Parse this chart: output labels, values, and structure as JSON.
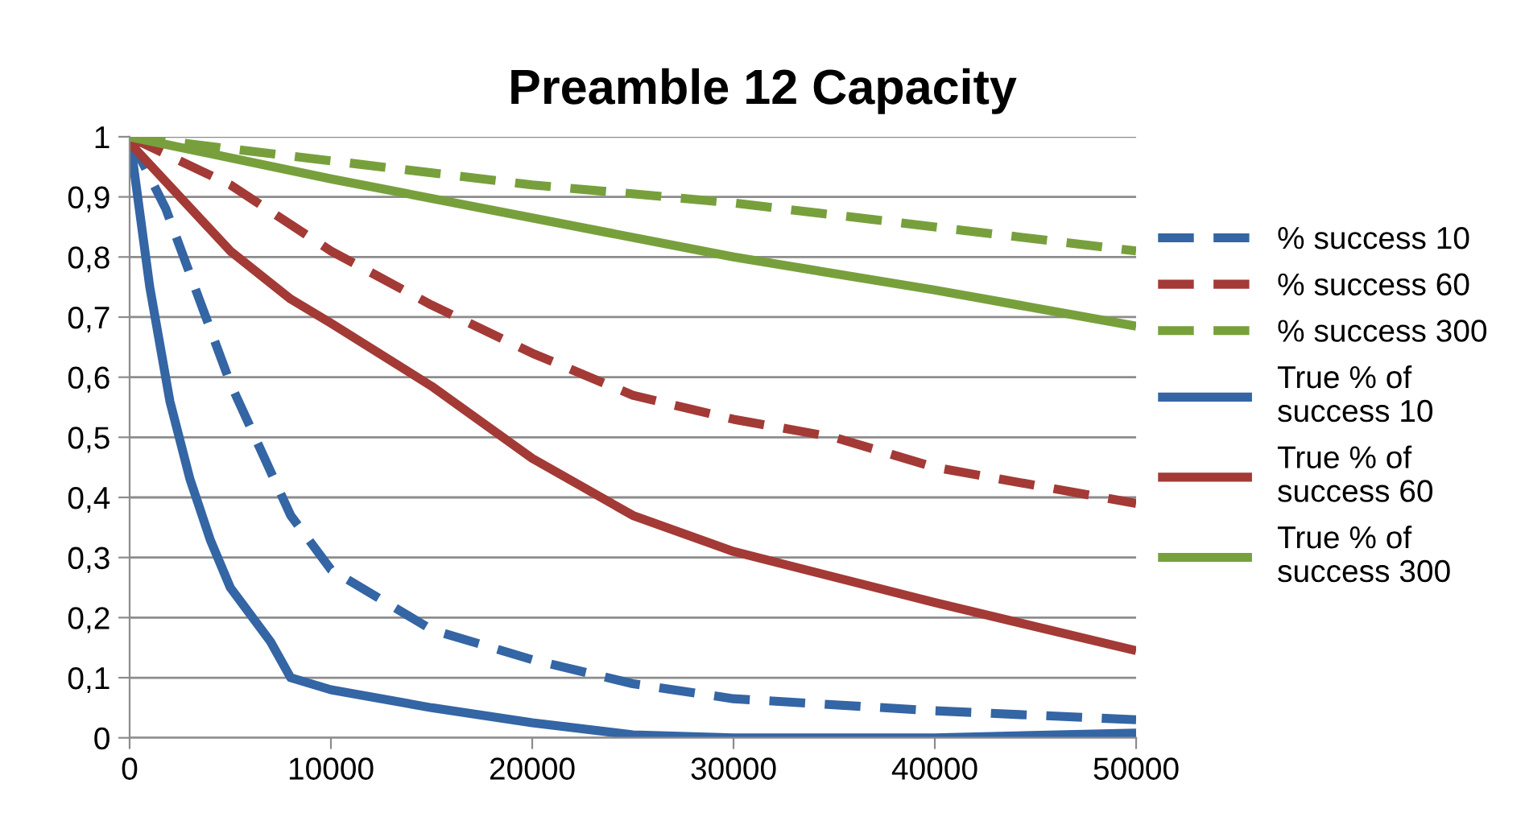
{
  "chart_data": {
    "type": "line",
    "title": "Preamble 12 Capacity",
    "series": [
      {
        "name": "% success 10",
        "color": "#3465a4",
        "line_style": "dashed",
        "x": [
          0,
          1800,
          5000,
          8000,
          10000,
          15000,
          20000,
          25000,
          30000,
          40000,
          50000
        ],
        "values": [
          1,
          0.88,
          0.59,
          0.37,
          0.28,
          0.18,
          0.13,
          0.09,
          0.065,
          0.045,
          0.03
        ]
      },
      {
        "name": "% success 60",
        "color": "#a33a36",
        "line_style": "dashed",
        "x": [
          0,
          5000,
          10000,
          15000,
          20000,
          25000,
          30000,
          35000,
          40000,
          50000
        ],
        "values": [
          1,
          0.92,
          0.81,
          0.72,
          0.64,
          0.57,
          0.53,
          0.5,
          0.45,
          0.39
        ]
      },
      {
        "name": "% success 300",
        "color": "#77a03c",
        "line_style": "dashed",
        "x": [
          0,
          10000,
          20000,
          30000,
          40000,
          50000
        ],
        "values": [
          1,
          0.96,
          0.92,
          0.89,
          0.85,
          0.81
        ]
      },
      {
        "name": "True % of\nsuccess 10",
        "color": "#3465a4",
        "line_style": "solid",
        "x": [
          0,
          1000,
          2000,
          3000,
          4000,
          5000,
          7000,
          8000,
          9000,
          10000,
          15000,
          20000,
          25000,
          30000,
          40000,
          50000
        ],
        "values": [
          1,
          0.75,
          0.56,
          0.43,
          0.33,
          0.25,
          0.16,
          0.1,
          0.09,
          0.08,
          0.05,
          0.025,
          0.005,
          0,
          0,
          0.008
        ]
      },
      {
        "name": "True % of\nsuccess 60",
        "color": "#a33a36",
        "line_style": "solid",
        "x": [
          0,
          5000,
          8000,
          10000,
          15000,
          20000,
          25000,
          30000,
          40000,
          50000
        ],
        "values": [
          0.99,
          0.81,
          0.73,
          0.69,
          0.585,
          0.465,
          0.37,
          0.31,
          0.225,
          0.145
        ]
      },
      {
        "name": "True % of\nsuccess 300",
        "color": "#77a03c",
        "line_style": "solid",
        "x": [
          0,
          10000,
          20000,
          30000,
          40000,
          50000
        ],
        "values": [
          1,
          0.93,
          0.865,
          0.8,
          0.745,
          0.685
        ]
      }
    ],
    "xlim": [
      0,
      50000
    ],
    "xticks": [
      0,
      10000,
      20000,
      30000,
      40000,
      50000
    ],
    "ylim": [
      0,
      1
    ],
    "yticks": [
      0,
      {
        "value": 0.1,
        "label": "0,1"
      },
      {
        "value": 0.2,
        "label": "0,2"
      },
      {
        "value": 0.3,
        "label": "0,3"
      },
      {
        "value": 0.4,
        "label": "0,4"
      },
      {
        "value": 0.5,
        "label": "0,5"
      },
      {
        "value": 0.6,
        "label": "0,6"
      },
      {
        "value": 0.7,
        "label": "0,7"
      },
      {
        "value": 0.8,
        "label": "0,8"
      },
      {
        "value": 0.9,
        "label": "0,9"
      },
      1
    ],
    "grid": "y",
    "legend": "right",
    "marker": "none"
  }
}
